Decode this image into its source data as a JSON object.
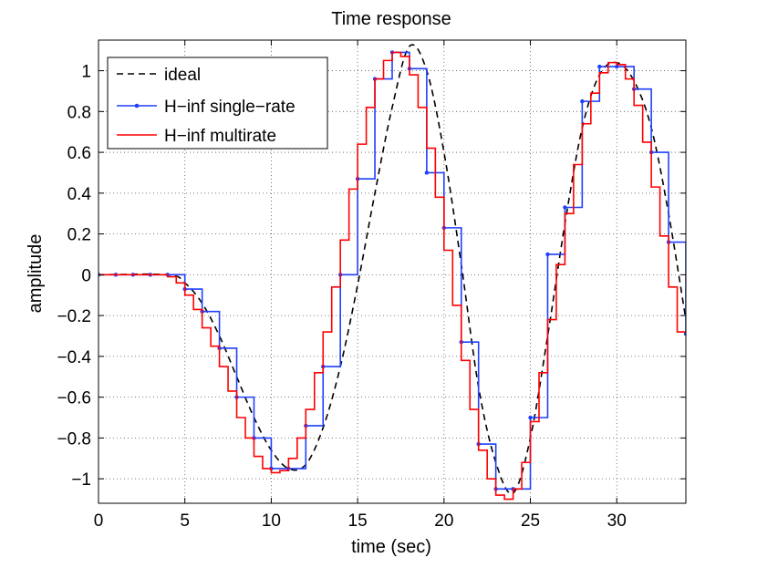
{
  "chart_data": {
    "type": "line",
    "title": "Time response",
    "xlabel": "time (sec)",
    "ylabel": "amplitude",
    "xlim": [
      0,
      34
    ],
    "ylim": [
      -1.12,
      1.15
    ],
    "x_ticks": [
      0,
      5,
      10,
      15,
      20,
      25,
      30
    ],
    "x_tick_labels": [
      "0",
      "5",
      "10",
      "15",
      "20",
      "25",
      "30"
    ],
    "y_ticks": [
      -1,
      -0.8,
      -0.6,
      -0.4,
      -0.2,
      0,
      0.2,
      0.4,
      0.6,
      0.8,
      1
    ],
    "y_tick_labels": [
      "−1",
      "−0.8",
      "−0.6",
      "−0.4",
      "−0.2",
      "0",
      "0.2",
      "0.4",
      "0.6",
      "0.8",
      "1"
    ],
    "grid": true,
    "legend_position": "top-left",
    "series": [
      {
        "name": "ideal",
        "style": "dashed",
        "color": "#000000",
        "x": [
          0,
          4,
          5,
          6,
          7,
          8,
          9,
          10,
          11,
          12,
          13,
          14,
          15,
          16,
          17,
          18,
          19,
          20,
          21,
          22,
          23,
          24,
          25,
          26,
          27,
          28,
          29,
          30,
          31,
          32,
          33,
          34
        ],
        "y": [
          0,
          0,
          -0.04,
          -0.14,
          -0.3,
          -0.5,
          -0.7,
          -0.86,
          -0.95,
          -0.93,
          -0.75,
          -0.45,
          -0.05,
          0.4,
          0.82,
          1.12,
          1.0,
          0.6,
          0.05,
          -0.55,
          -0.92,
          -1.07,
          -0.8,
          -0.3,
          0.25,
          0.72,
          0.98,
          1.04,
          0.95,
          0.72,
          0.3,
          -0.22
        ]
      },
      {
        "name": "H−inf single−rate",
        "style": "stairs-markers",
        "color": "#1f3fff",
        "x": [
          0,
          1,
          2,
          3,
          4,
          5,
          6,
          7,
          8,
          9,
          10,
          11,
          12,
          13,
          14,
          15,
          16,
          17,
          18,
          19,
          20,
          21,
          22,
          23,
          24,
          25,
          26,
          27,
          28,
          29,
          30,
          31,
          32,
          33,
          34
        ],
        "y": [
          0,
          0,
          0,
          0,
          0,
          -0.07,
          -0.18,
          -0.36,
          -0.6,
          -0.8,
          -0.95,
          -0.95,
          -0.74,
          -0.45,
          0.0,
          0.47,
          0.96,
          1.09,
          1.01,
          0.5,
          0.23,
          -0.33,
          -0.83,
          -1.05,
          -1.05,
          -0.7,
          0.1,
          0.33,
          0.85,
          1.02,
          1.02,
          0.91,
          0.6,
          0.16,
          -0.29
        ]
      },
      {
        "name": "H−inf multirate",
        "style": "stairs",
        "color": "#ff0000",
        "x": [
          0,
          4,
          4.5,
          5,
          5.5,
          6,
          6.5,
          7,
          7.5,
          8,
          8.5,
          9,
          9.5,
          10,
          10.5,
          11,
          11.5,
          12,
          12.5,
          13,
          13.5,
          14,
          14.5,
          15,
          15.5,
          16,
          16.5,
          17,
          17.5,
          18,
          18.5,
          19,
          19.5,
          20,
          20.5,
          21,
          21.5,
          22,
          22.5,
          23,
          23.5,
          24,
          24.5,
          25,
          25.5,
          26,
          26.5,
          27,
          27.5,
          28,
          28.5,
          29,
          29.5,
          30,
          30.5,
          31,
          31.5,
          32,
          32.5,
          33,
          33.5,
          34
        ],
        "y": [
          0,
          -0.01,
          -0.04,
          -0.1,
          -0.17,
          -0.26,
          -0.35,
          -0.45,
          -0.57,
          -0.7,
          -0.8,
          -0.89,
          -0.95,
          -0.97,
          -0.96,
          -0.9,
          -0.8,
          -0.66,
          -0.48,
          -0.28,
          -0.06,
          0.17,
          0.42,
          0.64,
          0.82,
          0.96,
          1.05,
          1.09,
          1.07,
          0.98,
          0.82,
          0.62,
          0.38,
          0.12,
          -0.15,
          -0.42,
          -0.66,
          -0.86,
          -1.0,
          -1.08,
          -1.1,
          -1.05,
          -0.92,
          -0.72,
          -0.48,
          -0.22,
          0.05,
          0.3,
          0.54,
          0.74,
          0.89,
          0.99,
          1.04,
          1.03,
          0.96,
          0.83,
          0.65,
          0.43,
          0.19,
          -0.06,
          -0.28,
          -0.28
        ]
      }
    ]
  }
}
